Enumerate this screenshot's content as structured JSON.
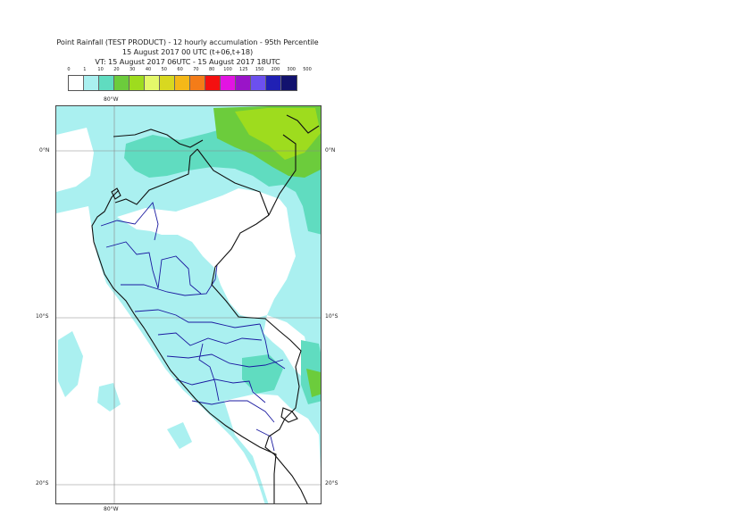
{
  "title": {
    "line1": "Point Rainfall (TEST PRODUCT) - 12 hourly accumulation - 95th Percentile",
    "line2": "15 August 2017 00 UTC (t+06,t+18)",
    "line3": "VT: 15 August 2017 06UTC - 15 August 2017 18UTC"
  },
  "legend": {
    "labels": [
      "0",
      "1",
      "10",
      "20",
      "30",
      "40",
      "50",
      "60",
      "70",
      "80",
      "100",
      "125",
      "150",
      "200",
      "300",
      "500"
    ],
    "colors": [
      "#ffffff",
      "#aaf0f0",
      "#60dcc0",
      "#6ccc3c",
      "#9edc1e",
      "#e4f86a",
      "#d8d820",
      "#f4b818",
      "#f47c18",
      "#f41010",
      "#e214e2",
      "#9a14c8",
      "#6c50ee",
      "#2020b4",
      "#12126e"
    ]
  },
  "map": {
    "lon_labels": {
      "top": "80°W",
      "bottom": "80°W"
    },
    "lat_labels": {
      "left": [
        "0°N",
        "10°S",
        "20°S"
      ],
      "right": [
        "0°N",
        "10°S",
        "20°S"
      ]
    },
    "colors": {
      "light_cyan": "#aaf0f0",
      "teal": "#60dcc0",
      "green": "#6ccc3c",
      "yellow_green": "#9edc1e",
      "coast": "#111111",
      "regions": "#1a1aa0",
      "grid": "#888888"
    }
  }
}
